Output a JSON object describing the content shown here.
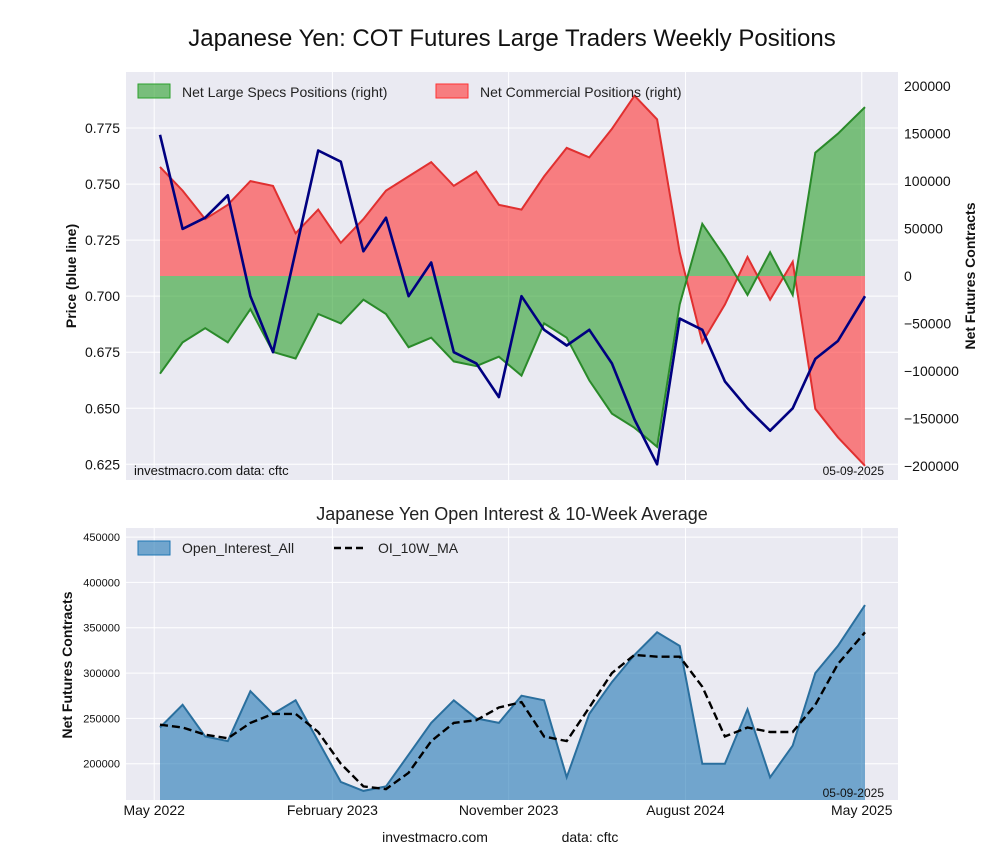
{
  "title": "Japanese Yen: COT Futures Large Traders Weekly Positions",
  "footer": {
    "left": "investmacro.com",
    "right": "data: cftc"
  },
  "colors": {
    "price": "#000080",
    "specs": "#2ca02c",
    "commercial": "#ff3333",
    "oi": "#1f77b4",
    "ma": "#000000"
  },
  "chart_data": [
    {
      "type": "area",
      "title": "",
      "xlabel": "",
      "ylabel_left": "Price (blue line)",
      "ylabel_right": "Net Futures Contracts",
      "ylim_left": [
        0.618,
        0.8
      ],
      "ylim_right": [
        -215000,
        215000
      ],
      "yticks_left": [
        "0.625",
        "0.650",
        "0.675",
        "0.700",
        "0.725",
        "0.750",
        "0.775"
      ],
      "yticks_right": [
        "−200000",
        "−150000",
        "−100000",
        "−50000",
        "0",
        "50000",
        "100000",
        "150000",
        "200000"
      ],
      "legend_loc": "upper-left",
      "annotation_left": "investmacro.com    data: cftc",
      "annotation_right": "05-09-2025",
      "x": [
        "2022-05-10",
        "2022-06-14",
        "2022-07-19",
        "2022-08-23",
        "2022-09-27",
        "2022-11-01",
        "2022-12-06",
        "2023-01-10",
        "2023-02-14",
        "2023-03-21",
        "2023-04-25",
        "2023-05-30",
        "2023-07-04",
        "2023-08-08",
        "2023-09-12",
        "2023-10-17",
        "2023-11-21",
        "2023-12-26",
        "2024-01-30",
        "2024-03-05",
        "2024-04-09",
        "2024-05-14",
        "2024-06-18",
        "2024-07-23",
        "2024-08-27",
        "2024-10-01",
        "2024-11-05",
        "2024-12-10",
        "2025-01-14",
        "2025-02-18",
        "2025-03-25",
        "2025-05-06"
      ],
      "series": [
        {
          "name": "Net Large Specs Positions (right)",
          "values": [
            -103000,
            -70000,
            -55000,
            -70000,
            -35000,
            -80000,
            -87000,
            -40000,
            -50000,
            -25000,
            -40000,
            -75000,
            -65000,
            -90000,
            -95000,
            -85000,
            -105000,
            -50000,
            -65000,
            -110000,
            -145000,
            -160000,
            -180000,
            -30000,
            55000,
            20000,
            -20000,
            25000,
            -20000,
            130000,
            150000,
            178000
          ]
        },
        {
          "name": "Net Commercial Positions (right)",
          "values": [
            115000,
            90000,
            60000,
            75000,
            100000,
            95000,
            45000,
            70000,
            35000,
            60000,
            90000,
            105000,
            120000,
            95000,
            110000,
            75000,
            70000,
            105000,
            135000,
            125000,
            155000,
            190000,
            165000,
            25000,
            -70000,
            -30000,
            20000,
            -25000,
            15000,
            -140000,
            -170000,
            -200000
          ]
        },
        {
          "name": "",
          "values": [
            0.772,
            0.73,
            0.735,
            0.745,
            0.7,
            0.675,
            0.72,
            0.765,
            0.76,
            0.72,
            0.735,
            0.7,
            0.715,
            0.675,
            0.67,
            0.655,
            0.7,
            0.685,
            0.678,
            0.685,
            0.67,
            0.645,
            0.625,
            0.69,
            0.685,
            0.662,
            0.65,
            0.64,
            0.65,
            0.672,
            0.68,
            0.7
          ]
        }
      ]
    },
    {
      "type": "area",
      "title": "Japanese Yen Open Interest & 10-Week Average",
      "xlabel": "",
      "ylabel": "Net Futures Contracts",
      "ylim": [
        160000,
        460000
      ],
      "yticks": [
        "200000",
        "250000",
        "300000",
        "350000",
        "400000",
        "450000"
      ],
      "xticks": [
        "May 2022",
        "February 2023",
        "November 2023",
        "August 2024",
        "May 2025"
      ],
      "legend_loc": "upper-left",
      "annotation_right": "05-09-2025",
      "x": [
        "2022-05-10",
        "2022-06-14",
        "2022-07-19",
        "2022-08-23",
        "2022-09-27",
        "2022-11-01",
        "2022-12-06",
        "2023-01-10",
        "2023-02-14",
        "2023-03-21",
        "2023-04-25",
        "2023-05-30",
        "2023-07-04",
        "2023-08-08",
        "2023-09-12",
        "2023-10-17",
        "2023-11-21",
        "2023-12-26",
        "2024-01-30",
        "2024-03-05",
        "2024-04-09",
        "2024-05-14",
        "2024-06-18",
        "2024-07-23",
        "2024-08-27",
        "2024-10-01",
        "2024-11-05",
        "2024-12-10",
        "2025-01-14",
        "2025-02-18",
        "2025-03-25",
        "2025-05-06"
      ],
      "series": [
        {
          "name": "Open_Interest_All",
          "values": [
            240000,
            265000,
            230000,
            225000,
            280000,
            255000,
            270000,
            225000,
            180000,
            170000,
            175000,
            210000,
            245000,
            270000,
            250000,
            245000,
            275000,
            270000,
            185000,
            255000,
            290000,
            320000,
            345000,
            330000,
            200000,
            200000,
            260000,
            185000,
            220000,
            300000,
            330000,
            375000
          ]
        },
        {
          "name": "OI_10W_MA",
          "values": [
            243000,
            240000,
            232000,
            228000,
            245000,
            255000,
            255000,
            235000,
            200000,
            175000,
            172000,
            190000,
            225000,
            245000,
            248000,
            262000,
            268000,
            230000,
            225000,
            262000,
            300000,
            320000,
            318000,
            318000,
            285000,
            230000,
            240000,
            235000,
            235000,
            265000,
            310000,
            345000
          ]
        }
      ]
    }
  ]
}
